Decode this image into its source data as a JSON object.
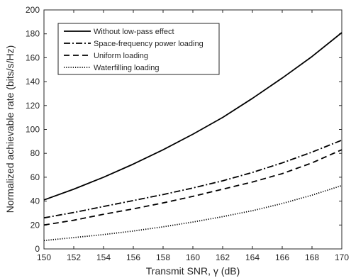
{
  "chart_data": {
    "type": "line",
    "xlabel": "Transmit SNR, γ (dB)",
    "ylabel": "Normalized achievable rate (bits/s/Hz)",
    "xlim": [
      150,
      170
    ],
    "ylim": [
      0,
      200
    ],
    "xticks": [
      150,
      152,
      154,
      156,
      158,
      160,
      162,
      164,
      166,
      168,
      170
    ],
    "yticks": [
      0,
      20,
      40,
      60,
      80,
      100,
      120,
      140,
      160,
      180,
      200
    ],
    "grid": false,
    "legend_position": "top-left",
    "x": [
      150,
      152,
      154,
      156,
      158,
      160,
      162,
      164,
      166,
      168,
      170
    ],
    "series": [
      {
        "name": "Without low-pass effect",
        "style": "solid",
        "values": [
          41,
          50,
          60,
          71,
          83,
          96,
          110,
          126,
          143,
          161,
          181
        ]
      },
      {
        "name": "Space-frequency power loading",
        "style": "dashdot",
        "values": [
          26,
          30.5,
          35.5,
          40.5,
          45.5,
          51,
          57,
          64,
          72,
          81,
          91
        ]
      },
      {
        "name": "Uniform loading",
        "style": "dashed",
        "values": [
          20,
          24,
          29,
          33.5,
          38.5,
          44,
          50,
          56,
          63,
          72,
          83
        ]
      },
      {
        "name": "Waterfilling loading",
        "style": "dotted",
        "values": [
          7,
          9.5,
          12,
          15,
          18.5,
          22.5,
          27,
          32,
          38,
          45,
          53
        ]
      }
    ]
  }
}
